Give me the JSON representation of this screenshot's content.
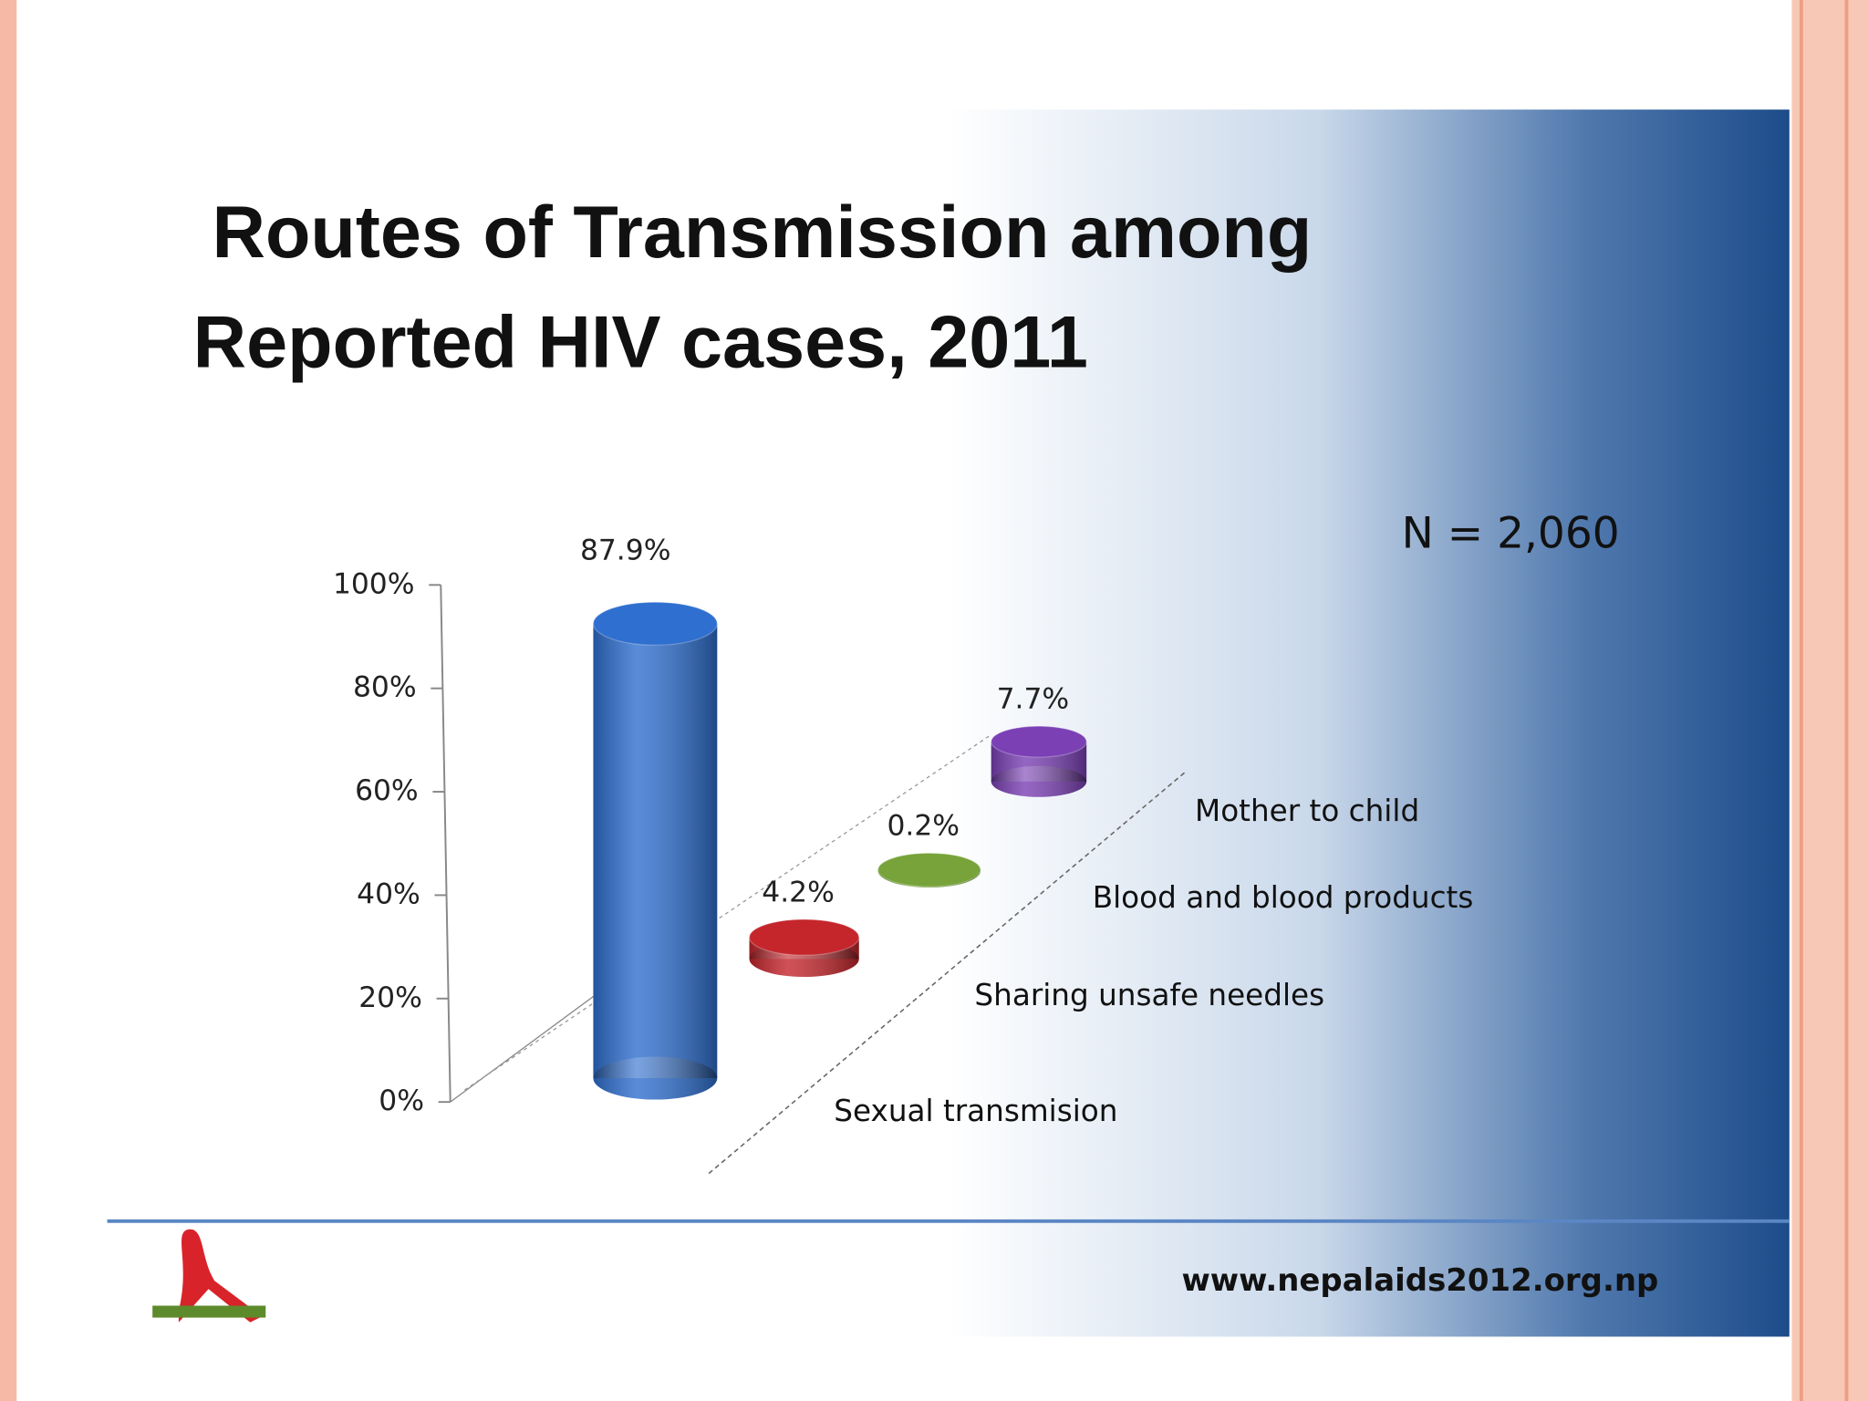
{
  "chart_data": {
    "type": "bar",
    "title": "Routes of Transmission among Reported HIV cases, 2011",
    "annotation": "N = 2,060",
    "footer": "www.nepalaids2012.org.np",
    "categories": [
      "Sexual transmision",
      "Sharing unsafe needles",
      "Blood and blood products",
      "Mother to child"
    ],
    "values": [
      87.9,
      4.2,
      0.2,
      7.7
    ],
    "value_labels": [
      "87.9%",
      "4.2%",
      "0.2%",
      "7.7%"
    ],
    "colors": [
      "#2f6fcf",
      "#c4262c",
      "#77a33a",
      "#7a40b4"
    ],
    "ylim": [
      0,
      100
    ],
    "yticks": [
      {
        "value": 0,
        "label": "0%"
      },
      {
        "value": 20,
        "label": "20%"
      },
      {
        "value": 40,
        "label": "40%"
      },
      {
        "value": 60,
        "label": "60%"
      },
      {
        "value": 80,
        "label": "80%"
      },
      {
        "value": 100,
        "label": "100%"
      }
    ],
    "grid": false
  }
}
